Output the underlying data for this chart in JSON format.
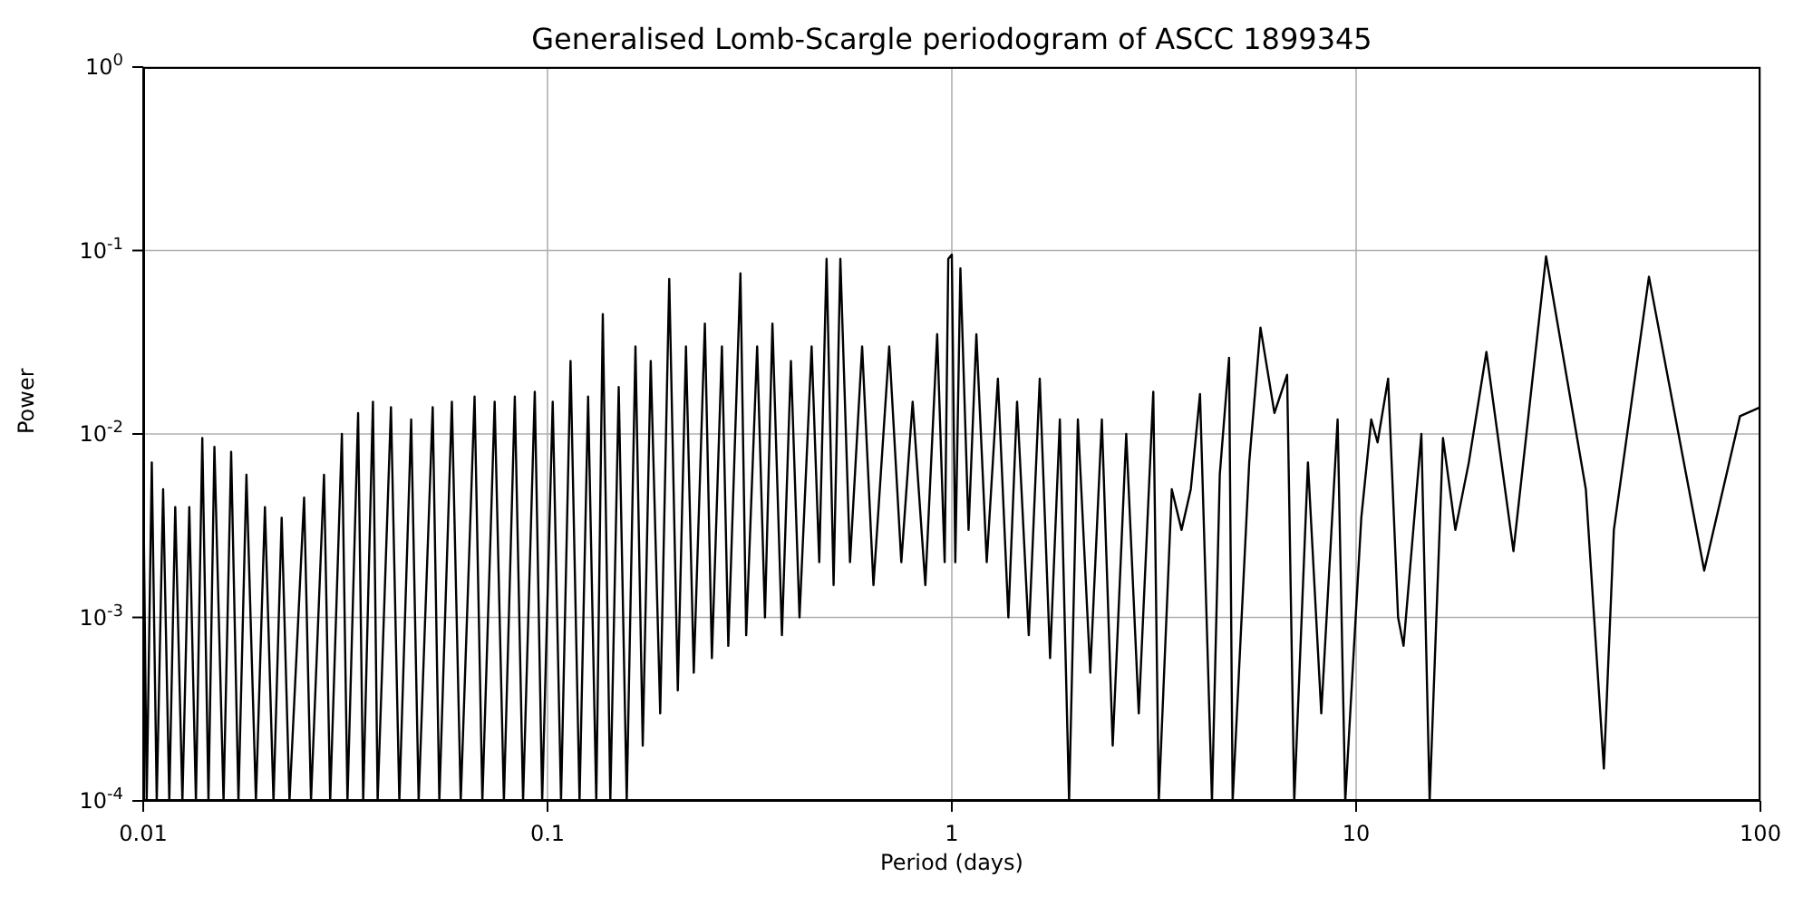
{
  "chart_data": {
    "type": "line",
    "title": "Generalised Lomb-Scargle periodogram of ASCC 1899345",
    "xlabel": "Period (days)",
    "ylabel": "Power",
    "log": "xy",
    "grid": true,
    "marker": "none",
    "line_style": "solid",
    "xlim": [
      0.01,
      100
    ],
    "xticks": [
      0.01,
      0.1,
      1,
      10,
      100
    ],
    "ylim": [
      0.0001,
      1
    ],
    "yticks": [
      {
        "value": 0.0001,
        "label": "10$^{-4}$"
      },
      {
        "value": 0.001,
        "label": "10$^{-3}$"
      },
      {
        "value": 0.01,
        "label": "10$^{-2}$"
      },
      {
        "value": 0.1,
        "label": "10$^{-1}$"
      },
      {
        "value": 1,
        "label": "10$^{0}$"
      }
    ],
    "series": [
      {
        "color": "#000000",
        "x": [
          0.01,
          0.0102,
          0.0105,
          0.0108,
          0.0112,
          0.0116,
          0.012,
          0.0125,
          0.013,
          0.0135,
          0.014,
          0.0145,
          0.015,
          0.0158,
          0.0165,
          0.0172,
          0.018,
          0.019,
          0.02,
          0.021,
          0.022,
          0.023,
          0.025,
          0.026,
          0.028,
          0.029,
          0.031,
          0.032,
          0.034,
          0.035,
          0.037,
          0.038,
          0.041,
          0.043,
          0.046,
          0.048,
          0.052,
          0.054,
          0.058,
          0.061,
          0.066,
          0.069,
          0.074,
          0.078,
          0.083,
          0.087,
          0.093,
          0.097,
          0.103,
          0.108,
          0.114,
          0.12,
          0.126,
          0.132,
          0.137,
          0.143,
          0.15,
          0.157,
          0.165,
          0.172,
          0.18,
          0.19,
          0.2,
          0.21,
          0.22,
          0.23,
          0.245,
          0.255,
          0.27,
          0.28,
          0.3,
          0.31,
          0.33,
          0.345,
          0.36,
          0.38,
          0.4,
          0.42,
          0.45,
          0.47,
          0.49,
          0.51,
          0.53,
          0.56,
          0.6,
          0.64,
          0.7,
          0.75,
          0.8,
          0.86,
          0.92,
          0.96,
          0.98,
          1.0,
          1.02,
          1.05,
          1.1,
          1.15,
          1.22,
          1.3,
          1.38,
          1.45,
          1.55,
          1.65,
          1.75,
          1.85,
          1.95,
          2.05,
          2.2,
          2.35,
          2.5,
          2.7,
          2.9,
          3.15,
          3.25,
          3.5,
          3.7,
          3.9,
          4.11,
          4.4,
          4.6,
          4.85,
          4.95,
          5.44,
          5.8,
          6.28,
          6.75,
          7.03,
          7.6,
          8.2,
          9.0,
          9.4,
          10.3,
          10.9,
          11.3,
          12.0,
          12.7,
          13.1,
          14.5,
          15.2,
          16.4,
          17.6,
          19,
          21,
          24.5,
          29.5,
          37,
          41,
          43.4,
          53,
          72.6,
          89,
          100
        ],
        "values": [
          0.006,
          0.0001,
          0.007,
          0.0001,
          0.005,
          0.0001,
          0.004,
          0.0001,
          0.004,
          0.0001,
          0.0095,
          0.0001,
          0.0085,
          0.0001,
          0.008,
          0.0001,
          0.006,
          0.0001,
          0.004,
          0.0001,
          0.0035,
          0.0001,
          0.0045,
          0.0001,
          0.006,
          0.0001,
          0.01,
          0.0001,
          0.013,
          0.0001,
          0.015,
          0.0001,
          0.014,
          0.0001,
          0.012,
          0.0001,
          0.014,
          0.0001,
          0.015,
          0.0001,
          0.016,
          0.0001,
          0.015,
          0.0001,
          0.016,
          0.0001,
          0.017,
          0.0001,
          0.015,
          0.0001,
          0.025,
          0.0001,
          0.016,
          0.0001,
          0.045,
          0.0001,
          0.018,
          0.0001,
          0.03,
          0.0002,
          0.025,
          0.0003,
          0.07,
          0.0004,
          0.03,
          0.0005,
          0.04,
          0.0006,
          0.03,
          0.0007,
          0.075,
          0.0008,
          0.03,
          0.001,
          0.04,
          0.0008,
          0.025,
          0.001,
          0.03,
          0.002,
          0.09,
          0.0015,
          0.09,
          0.002,
          0.03,
          0.0015,
          0.03,
          0.002,
          0.015,
          0.0015,
          0.035,
          0.002,
          0.09,
          0.095,
          0.002,
          0.08,
          0.003,
          0.035,
          0.002,
          0.02,
          0.001,
          0.015,
          0.0008,
          0.02,
          0.0006,
          0.012,
          0.0001,
          0.012,
          0.0005,
          0.012,
          0.0002,
          0.01,
          0.0003,
          0.017,
          0.0001,
          0.005,
          0.003,
          0.005,
          0.0165,
          0.0001,
          0.006,
          0.026,
          0.0001,
          0.007,
          0.038,
          0.013,
          0.021,
          0.0001,
          0.007,
          0.0003,
          0.012,
          0.0001,
          0.0035,
          0.012,
          0.009,
          0.02,
          0.001,
          0.0007,
          0.01,
          0.0001,
          0.0095,
          0.003,
          0.007,
          0.028,
          0.0023,
          0.093,
          0.005,
          0.00015,
          0.003,
          0.072,
          0.0018,
          0.0125,
          0.014
        ]
      }
    ]
  }
}
